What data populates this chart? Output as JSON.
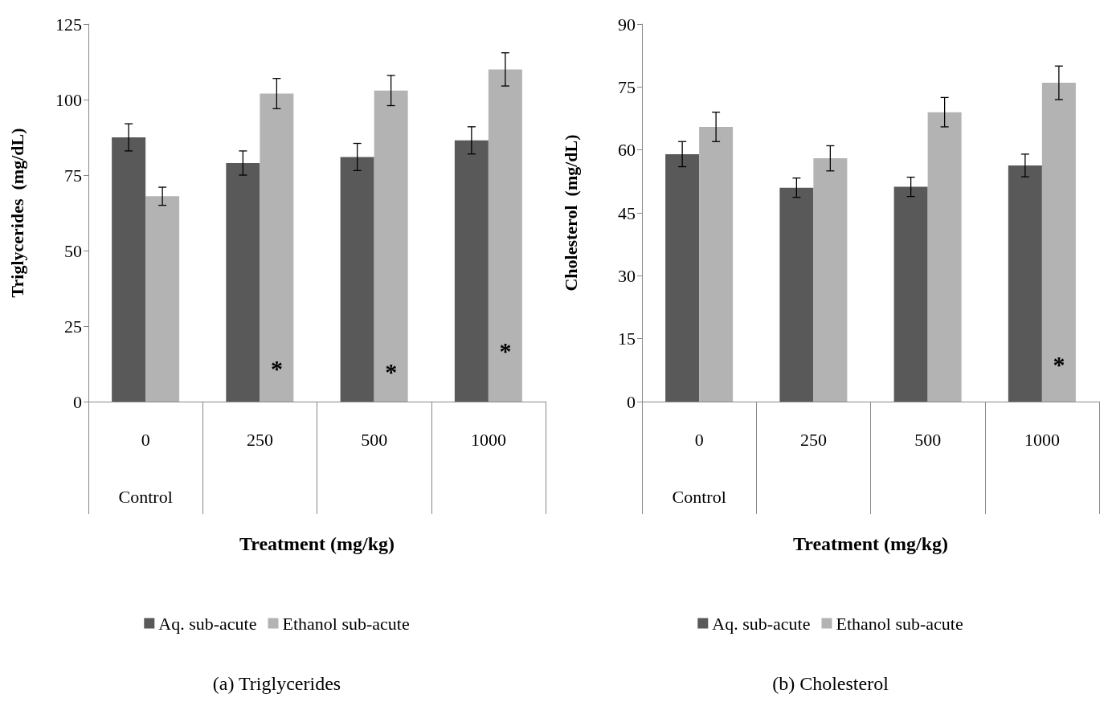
{
  "chart_data": [
    {
      "type": "bar",
      "title": "(a) Triglycerides",
      "xlabel": "Treatment (mg/kg)",
      "ylabel": "Triglycerides  (mg/dL)",
      "categories": [
        "0",
        "250",
        "500",
        "1000"
      ],
      "series": [
        {
          "name": "Aq. sub-acute",
          "color": "#595959",
          "values": [
            87.5,
            79,
            81,
            86.5
          ],
          "errors": [
            4.5,
            4,
            4.5,
            4.5
          ]
        },
        {
          "name": "Ethanol sub-acute",
          "color": "#b3b3b3",
          "values": [
            68,
            102,
            103,
            110
          ],
          "errors": [
            3,
            5,
            5,
            5.5
          ]
        }
      ],
      "ylim": [
        0,
        125
      ],
      "yticks": [
        0,
        25,
        50,
        75,
        100,
        125
      ],
      "grid": false,
      "legend": "bottom",
      "annotations": [
        "Control",
        {
          "text": "*",
          "x": "250",
          "y": 11
        },
        {
          "text": "*",
          "x": "500",
          "y": 10
        },
        {
          "text": "*",
          "x": "1000",
          "y": 17
        }
      ]
    },
    {
      "type": "bar",
      "title": "(b) Cholesterol",
      "xlabel": "Treatment (mg/kg)",
      "ylabel": "Cholesterol  (mg/dL)",
      "categories": [
        "0",
        "250",
        "500",
        "1000"
      ],
      "series": [
        {
          "name": "Aq. sub-acute",
          "color": "#595959",
          "values": [
            59,
            51,
            51.2,
            56.3
          ],
          "errors": [
            3,
            2.3,
            2.3,
            2.7
          ]
        },
        {
          "name": "Ethanol sub-acute",
          "color": "#b3b3b3",
          "values": [
            65.5,
            58,
            69,
            76
          ],
          "errors": [
            3.5,
            3,
            3.5,
            4
          ]
        }
      ],
      "ylim": [
        0,
        90
      ],
      "yticks": [
        0,
        15,
        30,
        45,
        60,
        75,
        90
      ],
      "grid": false,
      "legend": "bottom",
      "annotations": [
        "Control",
        {
          "text": "*",
          "x": "1000",
          "y": 9
        }
      ]
    }
  ]
}
